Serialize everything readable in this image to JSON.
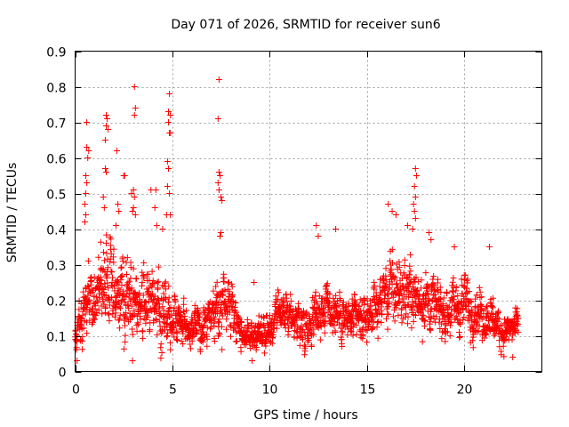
{
  "chart_data": {
    "type": "scatter",
    "title": "Day 071 of 2026, SRMTID for receiver sun6",
    "xlabel": "GPS time / hours",
    "ylabel": "SRMTID / TECUs",
    "xlim": [
      0,
      24
    ],
    "ylim": [
      0,
      0.9
    ],
    "xticks": [
      0,
      5,
      10,
      15,
      20
    ],
    "yticks": [
      0,
      0.1,
      0.2,
      0.3,
      0.4,
      0.5,
      0.6,
      0.7,
      0.8,
      0.9
    ],
    "xtick_labels": [
      "0",
      "5",
      "10",
      "15",
      "20"
    ],
    "ytick_labels": [
      "0",
      "0.1",
      "0.2",
      "0.3",
      "0.4",
      "0.5",
      "0.6",
      "0.7",
      "0.8",
      "0.9"
    ],
    "grid": true,
    "marker": "+",
    "series_color": "#ff0000",
    "sample_interval_hours": 0.01,
    "time_span_hours": [
      0,
      22.8
    ],
    "envelope": [
      [
        0.0,
        0.1,
        0.04
      ],
      [
        0.5,
        0.16,
        0.06
      ],
      [
        1.0,
        0.2,
        0.08
      ],
      [
        1.5,
        0.26,
        0.1
      ],
      [
        2.0,
        0.24,
        0.09
      ],
      [
        2.5,
        0.22,
        0.09
      ],
      [
        3.0,
        0.2,
        0.08
      ],
      [
        3.5,
        0.19,
        0.07
      ],
      [
        4.0,
        0.19,
        0.07
      ],
      [
        4.5,
        0.2,
        0.08
      ],
      [
        5.0,
        0.16,
        0.06
      ],
      [
        5.5,
        0.14,
        0.05
      ],
      [
        6.0,
        0.12,
        0.04
      ],
      [
        6.5,
        0.12,
        0.04
      ],
      [
        7.0,
        0.15,
        0.05
      ],
      [
        7.5,
        0.18,
        0.07
      ],
      [
        8.0,
        0.2,
        0.07
      ],
      [
        8.5,
        0.12,
        0.04
      ],
      [
        9.0,
        0.1,
        0.04
      ],
      [
        9.5,
        0.1,
        0.04
      ],
      [
        10.0,
        0.11,
        0.04
      ],
      [
        10.5,
        0.15,
        0.05
      ],
      [
        11.0,
        0.16,
        0.05
      ],
      [
        11.5,
        0.14,
        0.05
      ],
      [
        12.0,
        0.13,
        0.04
      ],
      [
        12.5,
        0.18,
        0.06
      ],
      [
        13.0,
        0.19,
        0.06
      ],
      [
        13.5,
        0.17,
        0.06
      ],
      [
        14.0,
        0.14,
        0.05
      ],
      [
        14.5,
        0.14,
        0.05
      ],
      [
        15.0,
        0.15,
        0.05
      ],
      [
        15.5,
        0.18,
        0.06
      ],
      [
        16.0,
        0.22,
        0.08
      ],
      [
        16.5,
        0.23,
        0.08
      ],
      [
        17.0,
        0.22,
        0.08
      ],
      [
        17.5,
        0.22,
        0.08
      ],
      [
        18.0,
        0.2,
        0.07
      ],
      [
        18.5,
        0.18,
        0.06
      ],
      [
        19.0,
        0.17,
        0.06
      ],
      [
        19.5,
        0.18,
        0.06
      ],
      [
        20.0,
        0.19,
        0.06
      ],
      [
        20.5,
        0.18,
        0.06
      ],
      [
        21.0,
        0.16,
        0.05
      ],
      [
        21.5,
        0.15,
        0.05
      ],
      [
        22.0,
        0.11,
        0.04
      ],
      [
        22.5,
        0.12,
        0.04
      ],
      [
        22.8,
        0.13,
        0.04
      ]
    ],
    "outliers": [
      {
        "x": 3.05,
        "y": 0.8
      },
      {
        "x": 3.1,
        "y": 0.74
      },
      {
        "x": 3.05,
        "y": 0.72
      },
      {
        "x": 7.4,
        "y": 0.82
      },
      {
        "x": 7.35,
        "y": 0.71
      },
      {
        "x": 4.85,
        "y": 0.78
      },
      {
        "x": 4.8,
        "y": 0.73
      },
      {
        "x": 4.9,
        "y": 0.72
      },
      {
        "x": 4.8,
        "y": 0.7
      },
      {
        "x": 4.85,
        "y": 0.67
      },
      {
        "x": 4.9,
        "y": 0.67
      },
      {
        "x": 1.6,
        "y": 0.72
      },
      {
        "x": 1.65,
        "y": 0.71
      },
      {
        "x": 1.6,
        "y": 0.69
      },
      {
        "x": 1.7,
        "y": 0.68
      },
      {
        "x": 1.55,
        "y": 0.65
      },
      {
        "x": 0.6,
        "y": 0.7
      },
      {
        "x": 0.6,
        "y": 0.63
      },
      {
        "x": 0.7,
        "y": 0.62
      },
      {
        "x": 0.65,
        "y": 0.6
      },
      {
        "x": 2.15,
        "y": 0.62
      },
      {
        "x": 1.55,
        "y": 0.57
      },
      {
        "x": 1.6,
        "y": 0.56
      },
      {
        "x": 0.55,
        "y": 0.55
      },
      {
        "x": 0.6,
        "y": 0.53
      },
      {
        "x": 0.55,
        "y": 0.5
      },
      {
        "x": 2.5,
        "y": 0.55
      },
      {
        "x": 2.55,
        "y": 0.55
      },
      {
        "x": 3.0,
        "y": 0.51
      },
      {
        "x": 2.9,
        "y": 0.5
      },
      {
        "x": 3.05,
        "y": 0.49
      },
      {
        "x": 3.0,
        "y": 0.46
      },
      {
        "x": 2.95,
        "y": 0.45
      },
      {
        "x": 3.1,
        "y": 0.44
      },
      {
        "x": 3.9,
        "y": 0.51
      },
      {
        "x": 4.15,
        "y": 0.51
      },
      {
        "x": 4.75,
        "y": 0.59
      },
      {
        "x": 4.8,
        "y": 0.57
      },
      {
        "x": 4.75,
        "y": 0.52
      },
      {
        "x": 4.85,
        "y": 0.5
      },
      {
        "x": 4.7,
        "y": 0.44
      },
      {
        "x": 4.9,
        "y": 0.44
      },
      {
        "x": 7.4,
        "y": 0.56
      },
      {
        "x": 7.45,
        "y": 0.55
      },
      {
        "x": 7.35,
        "y": 0.53
      },
      {
        "x": 7.4,
        "y": 0.51
      },
      {
        "x": 7.5,
        "y": 0.49
      },
      {
        "x": 7.55,
        "y": 0.48
      },
      {
        "x": 0.5,
        "y": 0.47
      },
      {
        "x": 0.55,
        "y": 0.44
      },
      {
        "x": 0.5,
        "y": 0.42
      },
      {
        "x": 1.45,
        "y": 0.49
      },
      {
        "x": 1.5,
        "y": 0.46
      },
      {
        "x": 2.2,
        "y": 0.47
      },
      {
        "x": 2.25,
        "y": 0.45
      },
      {
        "x": 2.1,
        "y": 0.41
      },
      {
        "x": 4.1,
        "y": 0.46
      },
      {
        "x": 4.2,
        "y": 0.41
      },
      {
        "x": 4.5,
        "y": 0.4
      },
      {
        "x": 7.5,
        "y": 0.39
      },
      {
        "x": 7.45,
        "y": 0.38
      },
      {
        "x": 12.4,
        "y": 0.41
      },
      {
        "x": 12.5,
        "y": 0.38
      },
      {
        "x": 13.4,
        "y": 0.4
      },
      {
        "x": 16.1,
        "y": 0.47
      },
      {
        "x": 16.3,
        "y": 0.45
      },
      {
        "x": 16.5,
        "y": 0.44
      },
      {
        "x": 17.5,
        "y": 0.57
      },
      {
        "x": 17.55,
        "y": 0.55
      },
      {
        "x": 17.45,
        "y": 0.52
      },
      {
        "x": 17.5,
        "y": 0.49
      },
      {
        "x": 17.4,
        "y": 0.47
      },
      {
        "x": 17.45,
        "y": 0.45
      },
      {
        "x": 17.5,
        "y": 0.43
      },
      {
        "x": 17.35,
        "y": 0.4
      },
      {
        "x": 17.1,
        "y": 0.41
      },
      {
        "x": 18.2,
        "y": 0.39
      },
      {
        "x": 18.3,
        "y": 0.37
      },
      {
        "x": 19.5,
        "y": 0.35
      },
      {
        "x": 21.3,
        "y": 0.35
      },
      {
        "x": 9.2,
        "y": 0.25
      },
      {
        "x": 2.95,
        "y": 0.03
      },
      {
        "x": 0.1,
        "y": 0.03
      },
      {
        "x": 9.1,
        "y": 0.03
      },
      {
        "x": 22.5,
        "y": 0.04
      }
    ]
  }
}
